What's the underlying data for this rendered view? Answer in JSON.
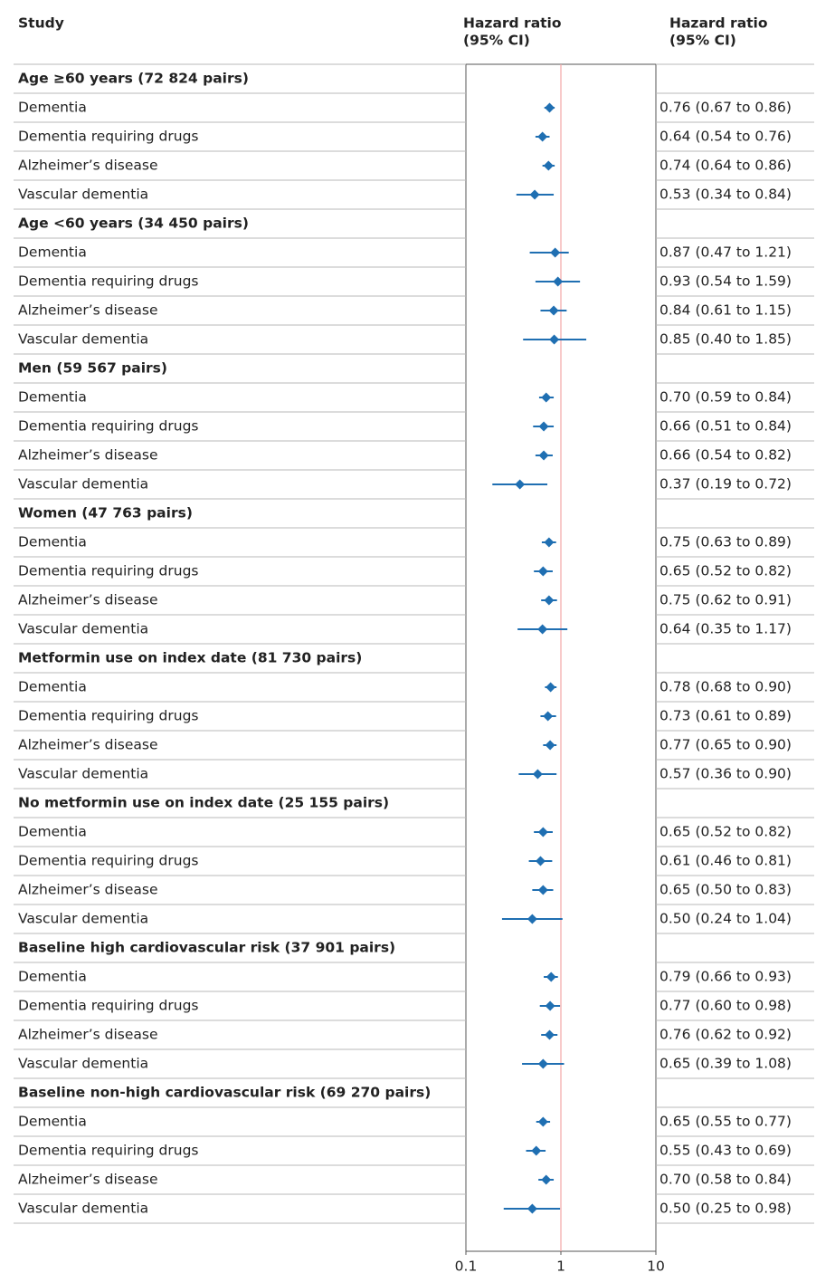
{
  "chart_data": {
    "type": "forest",
    "headers": {
      "study": "Study",
      "plot": [
        "Hazard ratio",
        "(95% CI)"
      ],
      "estimate": [
        "Hazard ratio",
        "(95% CI)"
      ]
    },
    "log_scale": true,
    "xlim": [
      0.1,
      10
    ],
    "xticks": [
      0.1,
      1,
      10
    ],
    "reference_line": 1,
    "color": "#1f6fb2",
    "reference_color": "#f2a7a7",
    "groups": [
      {
        "name": "Age ≥60 years (72 824 pairs)",
        "categories": [
          "Dementia",
          "Dementia requiring drugs",
          "Alzheimer’s disease",
          "Vascular dementia"
        ],
        "values": [
          0.76,
          0.64,
          0.74,
          0.53
        ],
        "lower": [
          0.67,
          0.54,
          0.64,
          0.34
        ],
        "upper": [
          0.86,
          0.76,
          0.86,
          0.84
        ],
        "value_labels": [
          "0.76 (0.67 to 0.86)",
          "0.64 (0.54 to 0.76)",
          "0.74 (0.64 to 0.86)",
          "0.53 (0.34 to 0.84)"
        ]
      },
      {
        "name": "Age <60 years (34 450 pairs)",
        "categories": [
          "Dementia",
          "Dementia requiring drugs",
          "Alzheimer’s disease",
          "Vascular dementia"
        ],
        "values": [
          0.87,
          0.93,
          0.84,
          0.85
        ],
        "lower": [
          0.47,
          0.54,
          0.61,
          0.4
        ],
        "upper": [
          1.21,
          1.59,
          1.15,
          1.85
        ],
        "value_labels": [
          "0.87 (0.47 to 1.21)",
          "0.93 (0.54 to 1.59)",
          "0.84 (0.61 to 1.15)",
          "0.85 (0.40 to 1.85)"
        ]
      },
      {
        "name": "Men (59 567 pairs)",
        "categories": [
          "Dementia",
          "Dementia requiring drugs",
          "Alzheimer’s disease",
          "Vascular dementia"
        ],
        "values": [
          0.7,
          0.66,
          0.66,
          0.37
        ],
        "lower": [
          0.59,
          0.51,
          0.54,
          0.19
        ],
        "upper": [
          0.84,
          0.84,
          0.82,
          0.72
        ],
        "value_labels": [
          "0.70 (0.59 to 0.84)",
          "0.66 (0.51 to 0.84)",
          "0.66 (0.54 to 0.82)",
          "0.37 (0.19 to 0.72)"
        ]
      },
      {
        "name": "Women (47 763 pairs)",
        "categories": [
          "Dementia",
          "Dementia requiring drugs",
          "Alzheimer’s disease",
          "Vascular dementia"
        ],
        "values": [
          0.75,
          0.65,
          0.75,
          0.64
        ],
        "lower": [
          0.63,
          0.52,
          0.62,
          0.35
        ],
        "upper": [
          0.89,
          0.82,
          0.91,
          1.17
        ],
        "value_labels": [
          "0.75 (0.63 to 0.89)",
          "0.65 (0.52 to 0.82)",
          "0.75 (0.62 to 0.91)",
          "0.64 (0.35 to 1.17)"
        ]
      },
      {
        "name": "Metformin use on index date (81 730 pairs)",
        "categories": [
          "Dementia",
          "Dementia requiring drugs",
          "Alzheimer’s disease",
          "Vascular dementia"
        ],
        "values": [
          0.78,
          0.73,
          0.77,
          0.57
        ],
        "lower": [
          0.68,
          0.61,
          0.65,
          0.36
        ],
        "upper": [
          0.9,
          0.89,
          0.9,
          0.9
        ],
        "value_labels": [
          "0.78 (0.68 to 0.90)",
          "0.73 (0.61 to 0.89)",
          "0.77 (0.65 to 0.90)",
          "0.57 (0.36 to 0.90)"
        ]
      },
      {
        "name": "No metformin use on index date (25 155 pairs)",
        "categories": [
          "Dementia",
          "Dementia requiring drugs",
          "Alzheimer’s disease",
          "Vascular dementia"
        ],
        "values": [
          0.65,
          0.61,
          0.65,
          0.5
        ],
        "lower": [
          0.52,
          0.46,
          0.5,
          0.24
        ],
        "upper": [
          0.82,
          0.81,
          0.83,
          1.04
        ],
        "value_labels": [
          "0.65 (0.52 to 0.82)",
          "0.61 (0.46 to 0.81)",
          "0.65 (0.50 to 0.83)",
          "0.50 (0.24 to 1.04)"
        ]
      },
      {
        "name": "Baseline high cardiovascular risk (37 901 pairs)",
        "categories": [
          "Dementia",
          "Dementia requiring drugs",
          "Alzheimer’s disease",
          "Vascular dementia"
        ],
        "values": [
          0.79,
          0.77,
          0.76,
          0.65
        ],
        "lower": [
          0.66,
          0.6,
          0.62,
          0.39
        ],
        "upper": [
          0.93,
          0.98,
          0.92,
          1.08
        ],
        "value_labels": [
          "0.79 (0.66 to 0.93)",
          "0.77 (0.60 to 0.98)",
          "0.76 (0.62 to 0.92)",
          "0.65 (0.39 to 1.08)"
        ]
      },
      {
        "name": "Baseline non-high cardiovascular risk (69 270 pairs)",
        "categories": [
          "Dementia",
          "Dementia requiring drugs",
          "Alzheimer’s disease",
          "Vascular dementia"
        ],
        "values": [
          0.65,
          0.55,
          0.7,
          0.5
        ],
        "lower": [
          0.55,
          0.43,
          0.58,
          0.25
        ],
        "upper": [
          0.77,
          0.69,
          0.84,
          0.98
        ],
        "value_labels": [
          "0.65 (0.55 to 0.77)",
          "0.55 (0.43 to 0.69)",
          "0.70 (0.58 to 0.84)",
          "0.50 (0.25 to 0.98)"
        ]
      }
    ]
  }
}
